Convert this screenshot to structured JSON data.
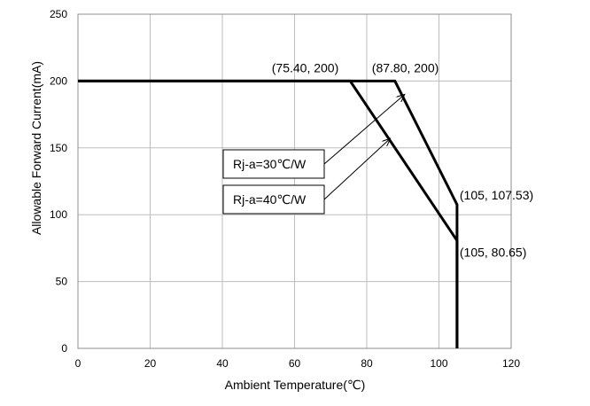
{
  "chart_data": {
    "type": "line",
    "xlabel": "Ambient Temperature(℃)",
    "ylabel": "Allowable Forward Current(mA)",
    "xlim": [
      0,
      120
    ],
    "ylim": [
      0,
      250
    ],
    "x_ticks": [
      "0",
      "20",
      "40",
      "60",
      "80",
      "100",
      "120"
    ],
    "y_ticks": [
      "0",
      "50",
      "100",
      "150",
      "200",
      "250"
    ],
    "grid": true,
    "series": [
      {
        "name": "Rj-a=30℃/W",
        "points": [
          [
            0,
            200
          ],
          [
            87.8,
            200
          ],
          [
            105,
            107.53
          ],
          [
            105,
            0
          ]
        ]
      },
      {
        "name": "Rj-a=40℃/W",
        "points": [
          [
            0,
            200
          ],
          [
            75.4,
            200
          ],
          [
            105,
            80.65
          ],
          [
            105,
            0
          ]
        ]
      }
    ],
    "annotations": [
      {
        "text": "(75.40, 200)",
        "x": 75.4,
        "y": 200
      },
      {
        "text": "(87.80, 200)",
        "x": 87.8,
        "y": 200
      },
      {
        "text": "(105, 107.53)",
        "x": 105,
        "y": 107.53
      },
      {
        "text": "(105, 80.65)",
        "x": 105,
        "y": 80.65
      }
    ],
    "callouts": [
      {
        "text": "Rj-a=30℃/W",
        "points_to": [
          90.5,
          190
        ]
      },
      {
        "text": "Rj-a=40℃/W",
        "points_to": [
          86.5,
          157
        ]
      }
    ]
  }
}
